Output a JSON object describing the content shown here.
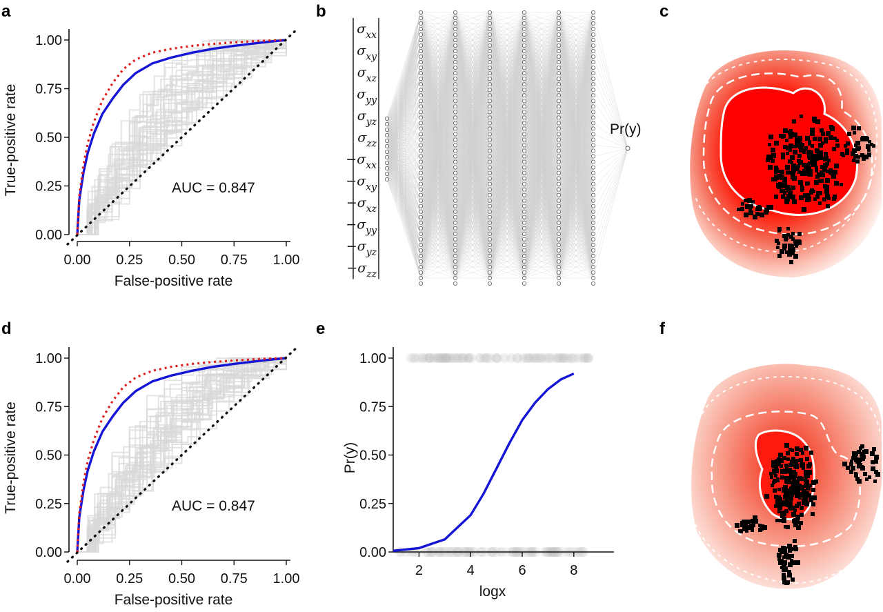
{
  "panel_labels": {
    "a": "a",
    "b": "b",
    "c": "c",
    "d": "d",
    "e": "e",
    "f": "f"
  },
  "colors": {
    "mean_roc": "#1515d6",
    "dashed_roc": "#e02020",
    "diagonal": "#111111",
    "background_curves": "#d8d8d8",
    "heat": "#ff0000",
    "aftershock": "#000000"
  },
  "chart_data": [
    {
      "id": "a",
      "type": "line",
      "xlabel": "False-positive rate",
      "ylabel": "True-positive rate",
      "xlim": [
        0,
        1
      ],
      "ylim": [
        0,
        1
      ],
      "xticks": [
        "0.00",
        "0.25",
        "0.50",
        "0.75",
        "1.00"
      ],
      "yticks": [
        "0.00",
        "0.25",
        "0.50",
        "0.75",
        "1.00"
      ],
      "annotation": "AUC =  0.847",
      "series": [
        {
          "style": "solid-blue",
          "x": [
            0,
            0.01,
            0.03,
            0.05,
            0.08,
            0.12,
            0.17,
            0.22,
            0.28,
            0.36,
            0.45,
            0.55,
            0.65,
            0.75,
            0.85,
            0.93,
            1.0
          ],
          "y": [
            0,
            0.18,
            0.32,
            0.42,
            0.52,
            0.62,
            0.7,
            0.77,
            0.83,
            0.88,
            0.91,
            0.935,
            0.955,
            0.97,
            0.983,
            0.993,
            1.0
          ]
        },
        {
          "style": "dashed-red",
          "x": [
            0,
            0.01,
            0.03,
            0.05,
            0.08,
            0.12,
            0.17,
            0.22,
            0.28,
            0.36,
            0.45,
            0.55,
            0.65,
            0.75,
            0.85,
            0.93,
            1.0
          ],
          "y": [
            0,
            0.2,
            0.36,
            0.47,
            0.58,
            0.69,
            0.78,
            0.85,
            0.9,
            0.935,
            0.955,
            0.97,
            0.98,
            0.988,
            0.994,
            0.998,
            1.0
          ]
        },
        {
          "style": "dotted-black",
          "x": [
            0,
            1
          ],
          "y": [
            0,
            1
          ]
        }
      ]
    },
    {
      "id": "d",
      "type": "line",
      "xlabel": "False-positive rate",
      "ylabel": "True-positive rate",
      "xlim": [
        0,
        1
      ],
      "ylim": [
        0,
        1
      ],
      "xticks": [
        "0.00",
        "0.25",
        "0.50",
        "0.75",
        "1.00"
      ],
      "yticks": [
        "0.00",
        "0.25",
        "0.50",
        "0.75",
        "1.00"
      ],
      "annotation": "AUC =  0.847",
      "series": [
        {
          "style": "solid-blue",
          "x": [
            0,
            0.01,
            0.03,
            0.05,
            0.08,
            0.12,
            0.17,
            0.22,
            0.28,
            0.36,
            0.45,
            0.55,
            0.65,
            0.75,
            0.85,
            0.93,
            1.0
          ],
          "y": [
            0,
            0.18,
            0.32,
            0.42,
            0.52,
            0.62,
            0.7,
            0.77,
            0.83,
            0.88,
            0.91,
            0.935,
            0.955,
            0.97,
            0.983,
            0.993,
            1.0
          ]
        },
        {
          "style": "dashed-red",
          "x": [
            0,
            0.01,
            0.03,
            0.05,
            0.08,
            0.12,
            0.17,
            0.22,
            0.28,
            0.36,
            0.45,
            0.55,
            0.65,
            0.75,
            0.85,
            0.93,
            1.0
          ],
          "y": [
            0,
            0.2,
            0.36,
            0.47,
            0.58,
            0.69,
            0.78,
            0.85,
            0.9,
            0.935,
            0.955,
            0.97,
            0.98,
            0.988,
            0.994,
            0.998,
            1.0
          ]
        },
        {
          "style": "dotted-black",
          "x": [
            0,
            1
          ],
          "y": [
            0,
            1
          ]
        }
      ]
    },
    {
      "id": "e",
      "type": "line",
      "xlabel": "logx",
      "ylabel": "Pr(y)",
      "xlim": [
        1,
        8.7
      ],
      "ylim": [
        0,
        1
      ],
      "xticks": [
        "2",
        "4",
        "6",
        "8"
      ],
      "yticks": [
        "0.00",
        "0.25",
        "0.50",
        "0.75",
        "1.00"
      ],
      "series": [
        {
          "style": "solid-blue",
          "x": [
            1,
            2,
            3,
            4,
            4.5,
            5,
            5.5,
            6,
            6.5,
            7,
            7.5,
            8
          ],
          "y": [
            0.006,
            0.02,
            0.065,
            0.19,
            0.3,
            0.43,
            0.56,
            0.68,
            0.77,
            0.84,
            0.89,
            0.92
          ]
        },
        {
          "style": "grey-points",
          "y_level": 1,
          "x_range": [
            1.6,
            8.7
          ]
        },
        {
          "style": "grey-points",
          "y_level": 0,
          "x_range": [
            1.2,
            8.5
          ]
        }
      ]
    }
  ],
  "network": {
    "features": [
      {
        "sign": "",
        "sub": "xx"
      },
      {
        "sign": "",
        "sub": "xy"
      },
      {
        "sign": "",
        "sub": "xz"
      },
      {
        "sign": "",
        "sub": "yy"
      },
      {
        "sign": "",
        "sub": "yz"
      },
      {
        "sign": "",
        "sub": "zz"
      },
      {
        "sign": "−",
        "sub": "xx"
      },
      {
        "sign": "−",
        "sub": "xy"
      },
      {
        "sign": "−",
        "sub": "xz"
      },
      {
        "sign": "−",
        "sub": "yy"
      },
      {
        "sign": "−",
        "sub": "yz"
      },
      {
        "sign": "−",
        "sub": "zz"
      }
    ],
    "symbol": "σ",
    "input_nodes": 12,
    "hidden_layers": 6,
    "hidden_nodes": 50,
    "output_label": "Pr(y)"
  }
}
